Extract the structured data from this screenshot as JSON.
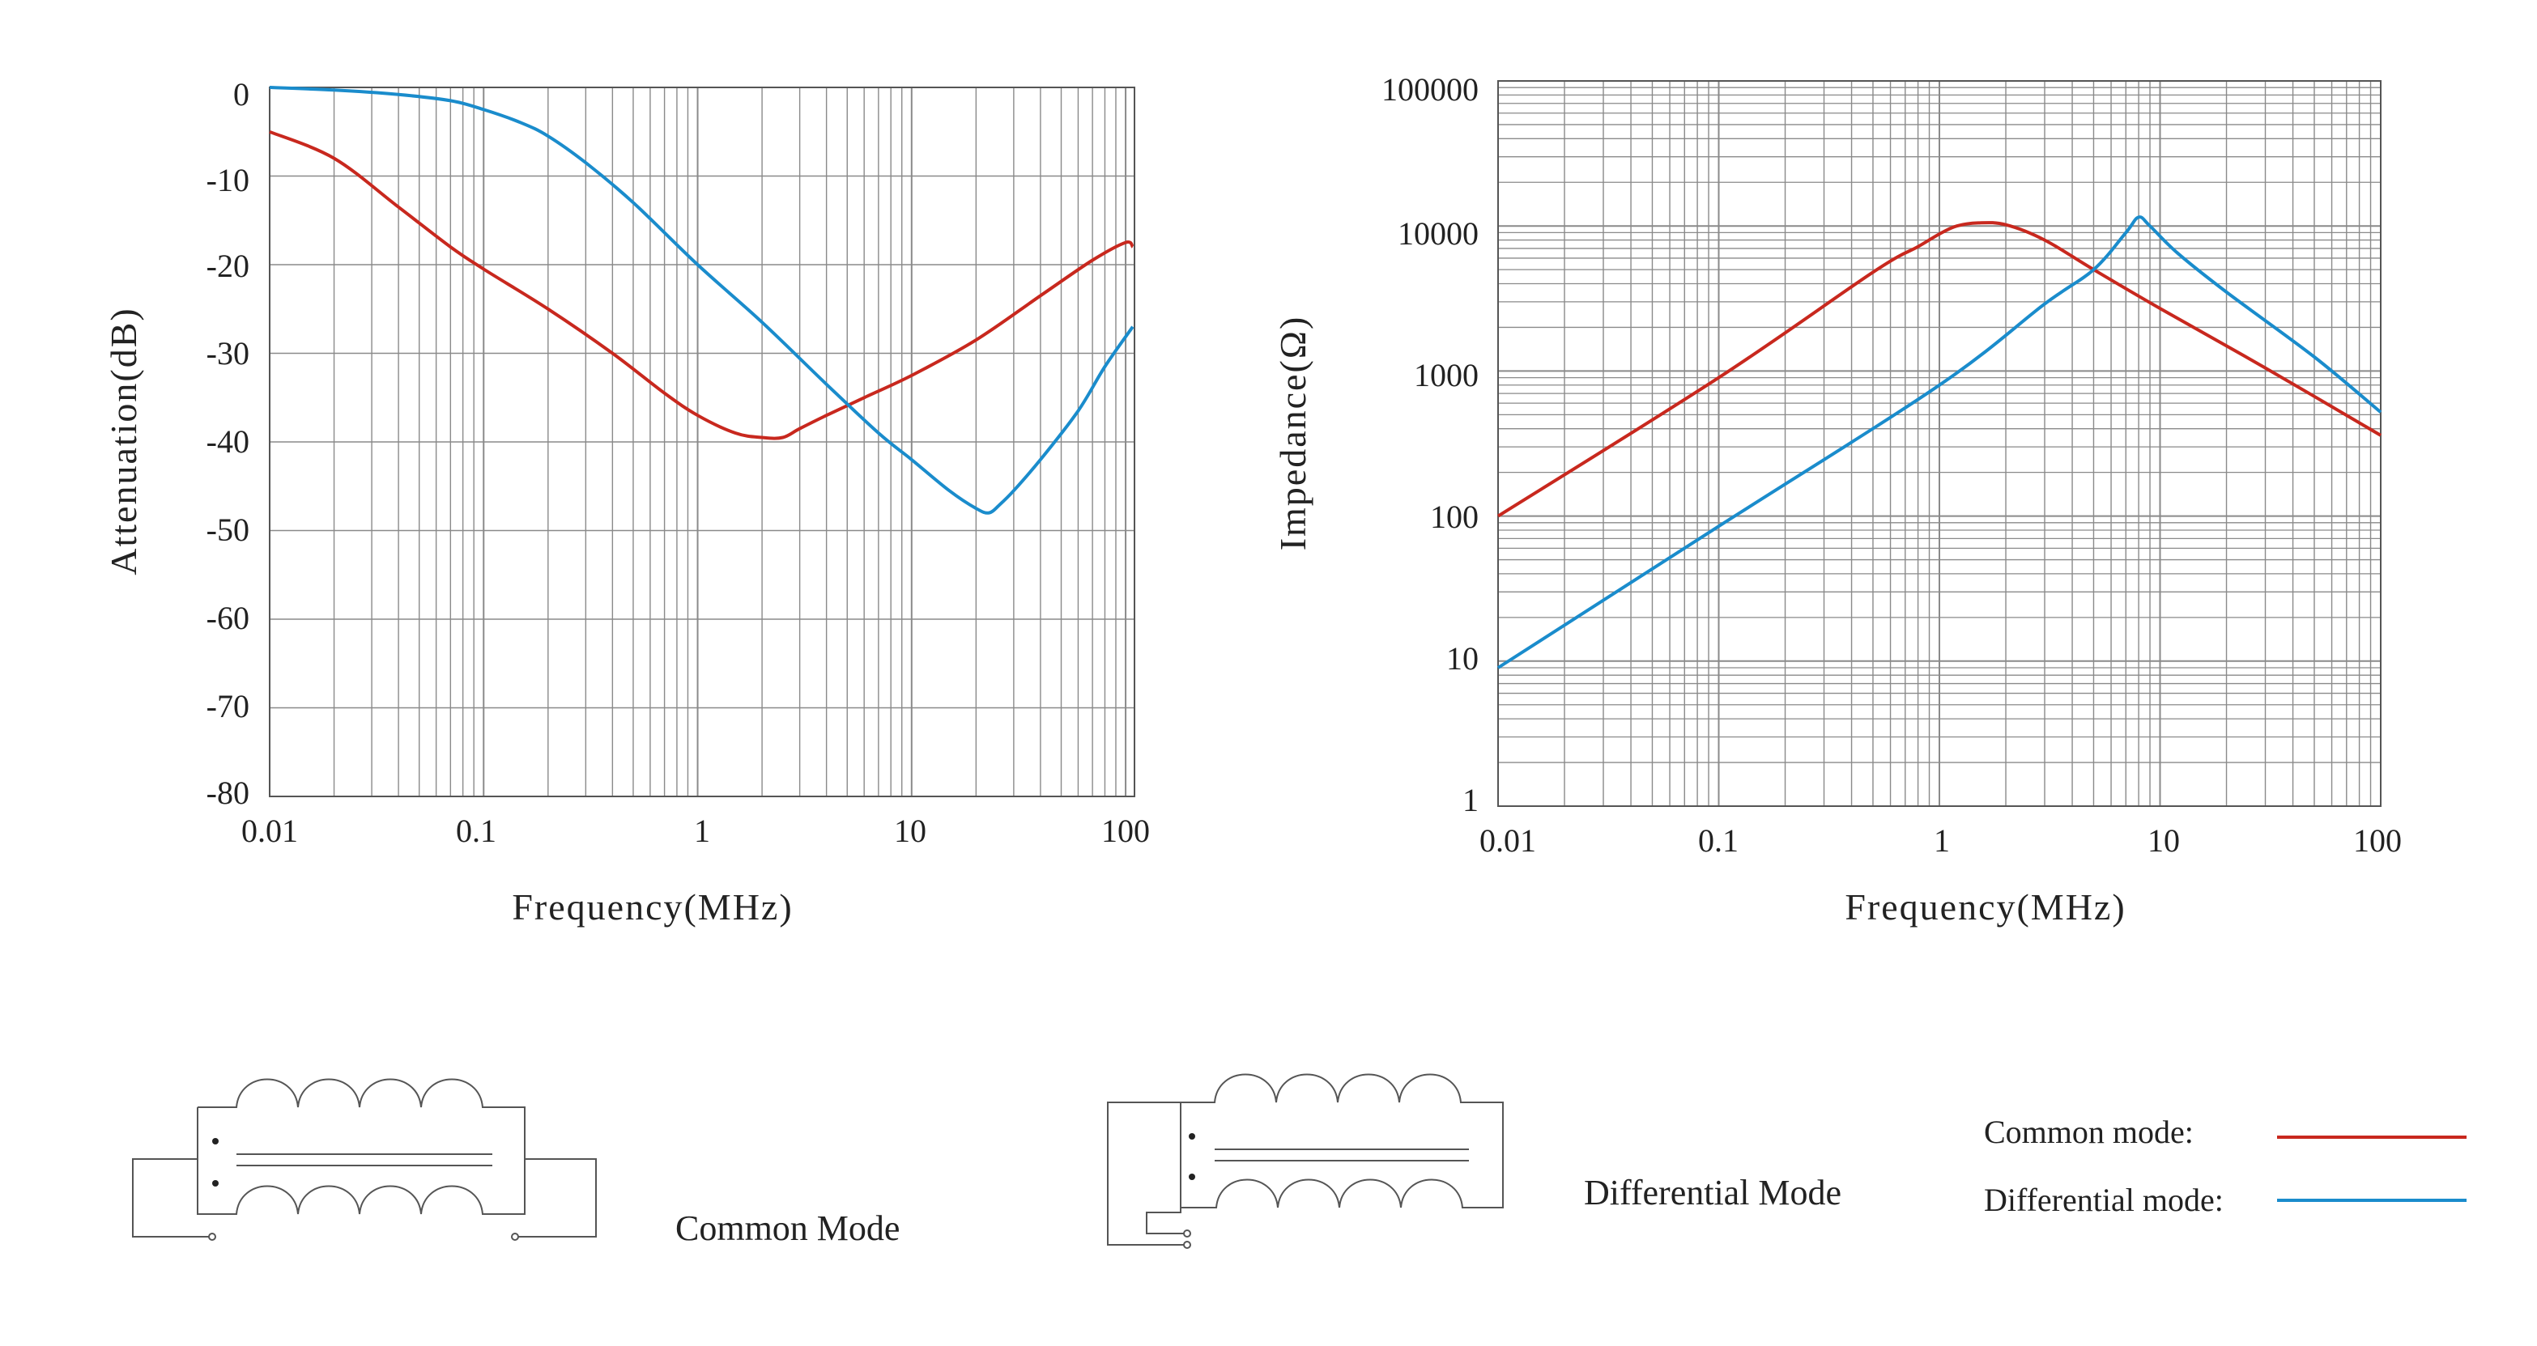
{
  "chart_data": [
    {
      "type": "line",
      "xlabel": "Frequency(MHz)",
      "ylabel": "Attenuation(dB)",
      "x_scale": "log",
      "xlim": [
        0.01,
        110
      ],
      "ylim": [
        -80,
        0
      ],
      "grid": true,
      "x_tick_labels": [
        "0.01",
        "0.1",
        "1",
        "10",
        "100"
      ],
      "y_tick_labels": [
        "0",
        "-10",
        "-20",
        "-30",
        "-40",
        "-50",
        "-60",
        "-70",
        "-80"
      ],
      "series": [
        {
          "color": "#c8281e",
          "points": [
            [
              0.01,
              -5
            ],
            [
              0.02,
              -8
            ],
            [
              0.04,
              -13.5
            ],
            [
              0.07,
              -18
            ],
            [
              0.1,
              -20.5
            ],
            [
              0.2,
              -25
            ],
            [
              0.4,
              -30
            ],
            [
              0.7,
              -34.5
            ],
            [
              1,
              -37
            ],
            [
              1.5,
              -39
            ],
            [
              2,
              -39.5
            ],
            [
              2.5,
              -39.5
            ],
            [
              3,
              -38.5
            ],
            [
              4,
              -37
            ],
            [
              6,
              -35
            ],
            [
              10,
              -32.5
            ],
            [
              20,
              -28.5
            ],
            [
              40,
              -23.5
            ],
            [
              70,
              -19.5
            ],
            [
              100,
              -17.5
            ],
            [
              108,
              -18
            ]
          ]
        },
        {
          "color": "#1a8ccc",
          "points": [
            [
              0.01,
              0
            ],
            [
              0.02,
              -0.3
            ],
            [
              0.04,
              -0.8
            ],
            [
              0.07,
              -1.5
            ],
            [
              0.1,
              -2.5
            ],
            [
              0.15,
              -4
            ],
            [
              0.2,
              -5.5
            ],
            [
              0.3,
              -8.5
            ],
            [
              0.5,
              -13
            ],
            [
              1,
              -20
            ],
            [
              2,
              -26.5
            ],
            [
              4,
              -33.5
            ],
            [
              7,
              -39
            ],
            [
              10,
              -42
            ],
            [
              15,
              -45.5
            ],
            [
              20,
              -47.5
            ],
            [
              23,
              -48
            ],
            [
              26,
              -47
            ],
            [
              30,
              -45.5
            ],
            [
              40,
              -42
            ],
            [
              60,
              -36.5
            ],
            [
              80,
              -31.5
            ],
            [
              108,
              -27
            ]
          ]
        }
      ]
    },
    {
      "type": "line",
      "xlabel": "Frequency(MHz)",
      "ylabel": "Impedance(Ω)",
      "x_scale": "log",
      "y_scale": "log",
      "xlim": [
        0.01,
        100
      ],
      "ylim": [
        1,
        100000
      ],
      "grid": true,
      "x_tick_labels": [
        "0.01",
        "0.1",
        "1",
        "10",
        "100"
      ],
      "y_tick_labels": [
        "100000",
        "10000",
        "1000",
        "100",
        "10",
        "1"
      ],
      "series": [
        {
          "color": "#c8281e",
          "points": [
            [
              0.01,
              100
            ],
            [
              0.1,
              900
            ],
            [
              0.5,
              4800
            ],
            [
              0.8,
              7200
            ],
            [
              1,
              8800
            ],
            [
              1.2,
              10000
            ],
            [
              1.5,
              10500
            ],
            [
              2,
              10200
            ],
            [
              3,
              8000
            ],
            [
              5,
              5000
            ],
            [
              10,
              2700
            ],
            [
              30,
              1050
            ],
            [
              100,
              360
            ]
          ]
        },
        {
          "color": "#1a8ccc",
          "points": [
            [
              0.01,
              9
            ],
            [
              0.1,
              85
            ],
            [
              1,
              800
            ],
            [
              3,
              2900
            ],
            [
              5,
              5000
            ],
            [
              7,
              9000
            ],
            [
              8,
              11500
            ],
            [
              9,
              10000
            ],
            [
              12,
              6500
            ],
            [
              20,
              3500
            ],
            [
              50,
              1250
            ],
            [
              100,
              520
            ]
          ]
        }
      ]
    }
  ],
  "captions": {
    "common_mode": "Common Mode",
    "differential_mode": "Differential Mode"
  },
  "legend": {
    "items": [
      {
        "label": "Common mode:",
        "color": "#c8281e"
      },
      {
        "label": "Differential mode:",
        "color": "#1a8ccc"
      }
    ]
  }
}
